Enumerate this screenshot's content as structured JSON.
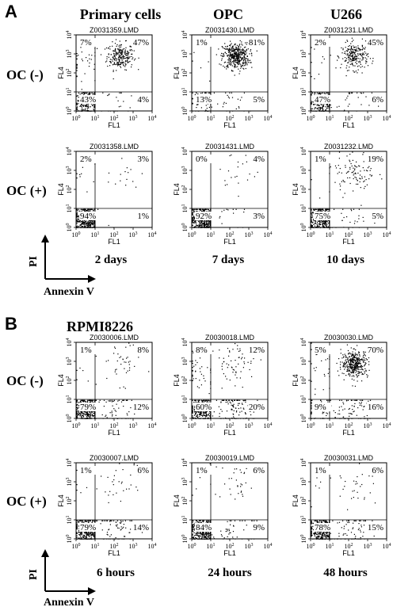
{
  "figure": {
    "sections": [
      {
        "letter": "A",
        "title": "",
        "columns": [
          "Primary cells",
          "OPC",
          "U266"
        ],
        "rows": [
          "OC (-)",
          "OC (+)"
        ],
        "captions": [
          "2 days",
          "7 days",
          "10 days"
        ],
        "axis_legend": {
          "y": "PI",
          "x": "Annexin V"
        }
      },
      {
        "letter": "B",
        "title": "RPMI8226",
        "columns": [],
        "rows": [
          "OC (-)",
          "OC (+)"
        ],
        "captions": [
          "6 hours",
          "24 hours",
          "48 hours"
        ],
        "axis_legend": {
          "y": "PI",
          "x": "Annexin V"
        }
      }
    ]
  },
  "chart_data": [
    {
      "type": "scatter",
      "section": "A",
      "file": "Z0031359.LMD",
      "xlabel": "FL1",
      "ylabel": "FL4",
      "xlim": [
        1,
        10000
      ],
      "ylim": [
        1,
        10000
      ],
      "log_scale": true,
      "quadrant_split": [
        10,
        10
      ],
      "quadrants": {
        "upper_left": "7%",
        "upper_right": "47%",
        "lower_left": "43%",
        "lower_right": "4%"
      }
    },
    {
      "type": "scatter",
      "section": "A",
      "file": "Z0031430.LMD",
      "xlabel": "FL1",
      "ylabel": "FL4",
      "xlim": [
        1,
        10000
      ],
      "ylim": [
        1,
        10000
      ],
      "log_scale": true,
      "quadrant_split": [
        10,
        10
      ],
      "quadrants": {
        "upper_left": "1%",
        "upper_right": "81%",
        "lower_left": "13%",
        "lower_right": "5%"
      }
    },
    {
      "type": "scatter",
      "section": "A",
      "file": "Z0031231.LMD",
      "xlabel": "FL1",
      "ylabel": "FL4",
      "xlim": [
        1,
        10000
      ],
      "ylim": [
        1,
        10000
      ],
      "log_scale": true,
      "quadrant_split": [
        10,
        10
      ],
      "quadrants": {
        "upper_left": "2%",
        "upper_right": "45%",
        "lower_left": "47%",
        "lower_right": "6%"
      }
    },
    {
      "type": "scatter",
      "section": "A",
      "file": "Z0031358.LMD",
      "xlabel": "FL1",
      "ylabel": "FL4",
      "xlim": [
        1,
        10000
      ],
      "ylim": [
        1,
        10000
      ],
      "log_scale": true,
      "quadrant_split": [
        10,
        10
      ],
      "quadrants": {
        "upper_left": "2%",
        "upper_right": "3%",
        "lower_left": "94%",
        "lower_right": "1%"
      }
    },
    {
      "type": "scatter",
      "section": "A",
      "file": "Z0031431.LMD",
      "xlabel": "FL1",
      "ylabel": "FL4",
      "xlim": [
        1,
        10000
      ],
      "ylim": [
        1,
        10000
      ],
      "log_scale": true,
      "quadrant_split": [
        10,
        10
      ],
      "quadrants": {
        "upper_left": "0%",
        "upper_right": "4%",
        "lower_left": "92%",
        "lower_right": "3%"
      }
    },
    {
      "type": "scatter",
      "section": "A",
      "file": "Z0031232.LMD",
      "xlabel": "FL1",
      "ylabel": "FL4",
      "xlim": [
        1,
        10000
      ],
      "ylim": [
        1,
        10000
      ],
      "log_scale": true,
      "quadrant_split": [
        10,
        10
      ],
      "quadrants": {
        "upper_left": "1%",
        "upper_right": "19%",
        "lower_left": "75%",
        "lower_right": "5%"
      }
    },
    {
      "type": "scatter",
      "section": "B",
      "file": "Z0030006.LMD",
      "xlabel": "FL1",
      "ylabel": "FL4",
      "xlim": [
        1,
        10000
      ],
      "ylim": [
        1,
        10000
      ],
      "log_scale": true,
      "quadrant_split": [
        10,
        10
      ],
      "quadrants": {
        "upper_left": "1%",
        "upper_right": "8%",
        "lower_left": "79%",
        "lower_right": "12%"
      }
    },
    {
      "type": "scatter",
      "section": "B",
      "file": "Z0030018.LMD",
      "xlabel": "FL1",
      "ylabel": "FL4",
      "xlim": [
        1,
        10000
      ],
      "ylim": [
        1,
        10000
      ],
      "log_scale": true,
      "quadrant_split": [
        10,
        10
      ],
      "quadrants": {
        "upper_left": "8%",
        "upper_right": "12%",
        "lower_left": "60%",
        "lower_right": "20%"
      }
    },
    {
      "type": "scatter",
      "section": "B",
      "file": "Z0030030.LMD",
      "xlabel": "FL1",
      "ylabel": "FL4",
      "xlim": [
        1,
        10000
      ],
      "ylim": [
        1,
        10000
      ],
      "log_scale": true,
      "quadrant_split": [
        10,
        10
      ],
      "quadrants": {
        "upper_left": "5%",
        "upper_right": "70%",
        "lower_left": "9%",
        "lower_right": "16%"
      }
    },
    {
      "type": "scatter",
      "section": "B",
      "file": "Z0030007.LMD",
      "xlabel": "FL1",
      "ylabel": "FL4",
      "xlim": [
        1,
        10000
      ],
      "ylim": [
        1,
        10000
      ],
      "log_scale": true,
      "quadrant_split": [
        10,
        10
      ],
      "quadrants": {
        "upper_left": "1%",
        "upper_right": "6%",
        "lower_left": "79%",
        "lower_right": "14%"
      }
    },
    {
      "type": "scatter",
      "section": "B",
      "file": "Z0030019.LMD",
      "xlabel": "FL1",
      "ylabel": "FL4",
      "xlim": [
        1,
        10000
      ],
      "ylim": [
        1,
        10000
      ],
      "log_scale": true,
      "quadrant_split": [
        10,
        10
      ],
      "quadrants": {
        "upper_left": "1%",
        "upper_right": "6%",
        "lower_left": "84%",
        "lower_right": "9%"
      }
    },
    {
      "type": "scatter",
      "section": "B",
      "file": "Z0030031.LMD",
      "xlabel": "FL1",
      "ylabel": "FL4",
      "xlim": [
        1,
        10000
      ],
      "ylim": [
        1,
        10000
      ],
      "log_scale": true,
      "quadrant_split": [
        10,
        10
      ],
      "quadrants": {
        "upper_left": "1%",
        "upper_right": "6%",
        "lower_left": "78%",
        "lower_right": "15%"
      }
    }
  ]
}
